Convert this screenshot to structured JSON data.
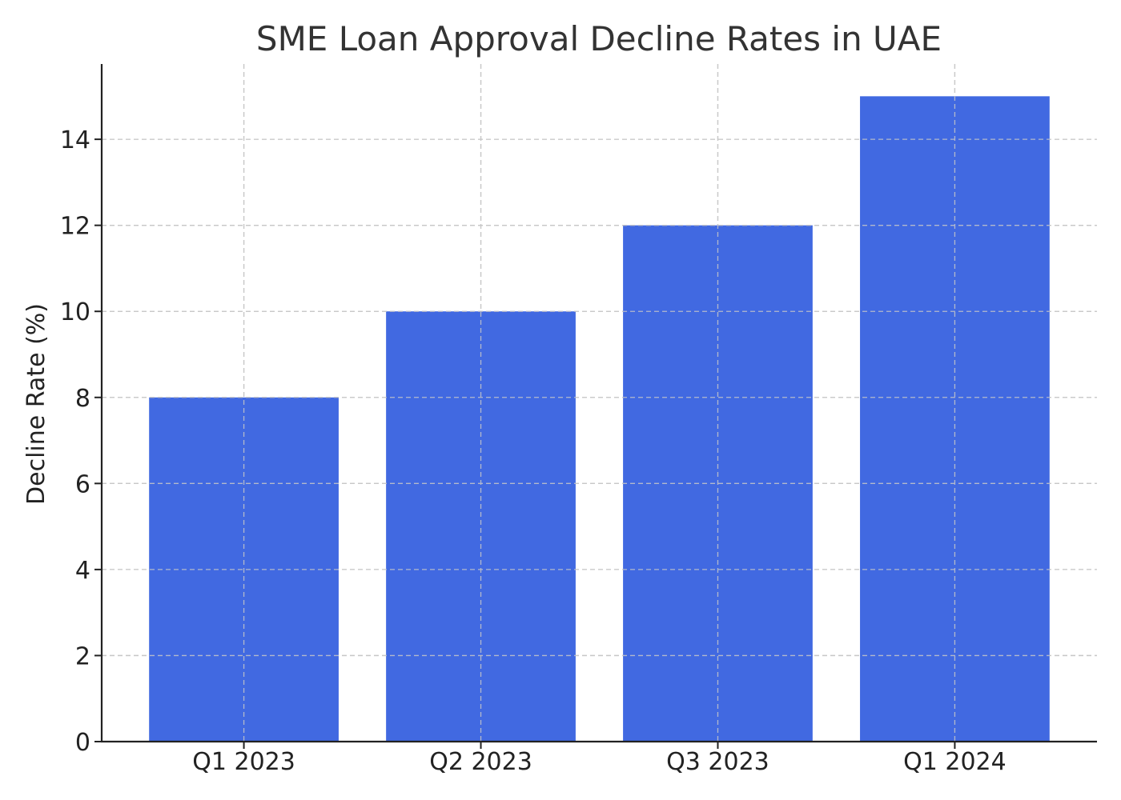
{
  "chart_data": {
    "type": "bar",
    "title": "SME Loan Approval Decline Rates in UAE",
    "xlabel": "",
    "ylabel": "Decline Rate (%)",
    "categories": [
      "Q1 2023",
      "Q2 2023",
      "Q3 2023",
      "Q1 2024"
    ],
    "values": [
      8,
      10,
      12,
      15
    ],
    "ylim": [
      0,
      15.75
    ],
    "yticks": [
      0,
      2,
      4,
      6,
      8,
      10,
      12,
      14
    ],
    "grid": true,
    "colors": {
      "bar": "#4169E1"
    }
  }
}
